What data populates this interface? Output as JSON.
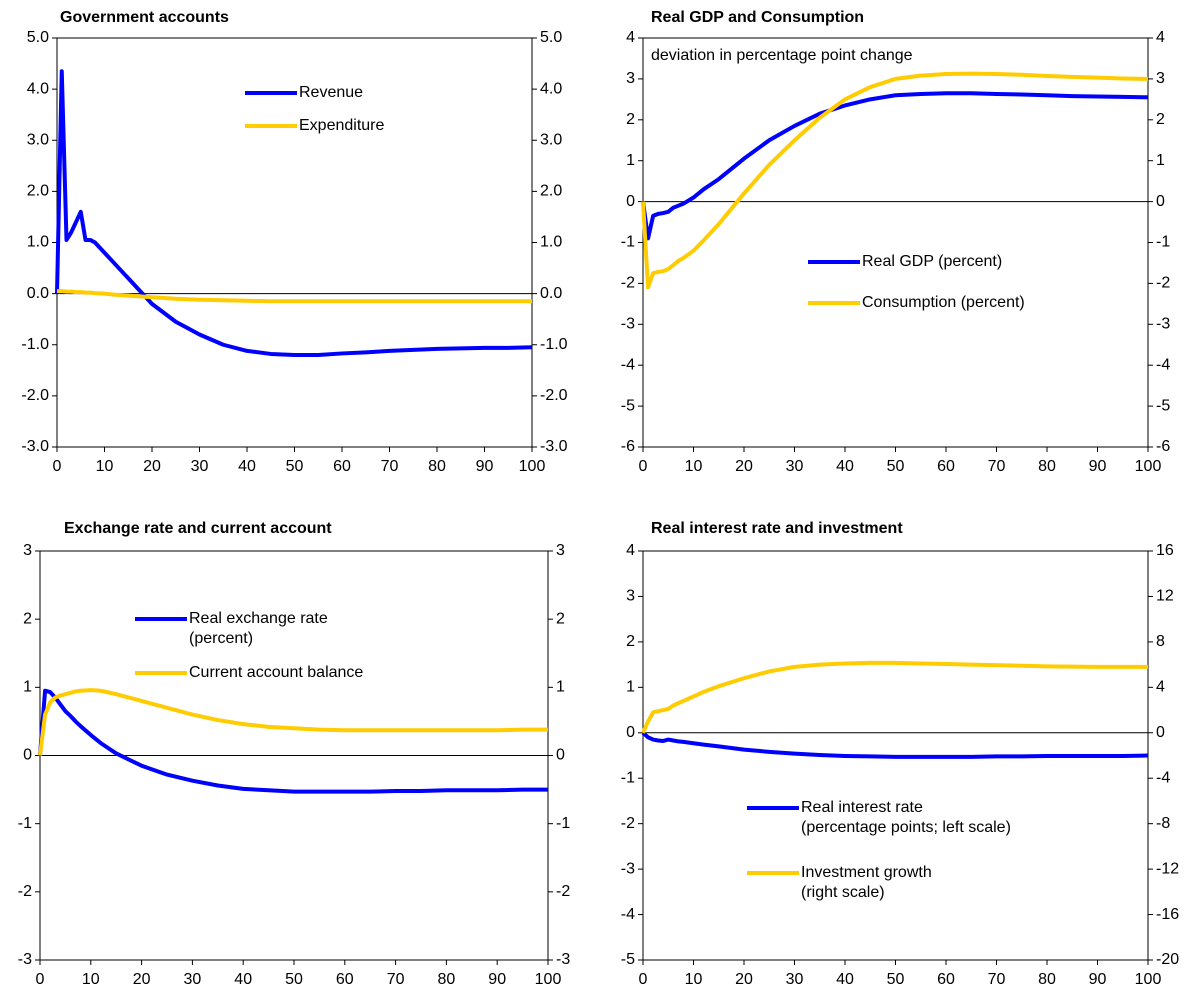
{
  "chart_data": [
    {
      "type": "line",
      "title": "Government accounts",
      "x": [
        0,
        1,
        2,
        3,
        4,
        5,
        6,
        7,
        8,
        10,
        12,
        15,
        20,
        25,
        30,
        35,
        40,
        45,
        50,
        55,
        60,
        65,
        70,
        75,
        80,
        85,
        90,
        95,
        100
      ],
      "series": [
        {
          "name": "Revenue",
          "color": "#0000ff",
          "values": [
            0,
            4.35,
            1.05,
            1.2,
            1.4,
            1.6,
            1.05,
            1.05,
            1.0,
            0.8,
            0.6,
            0.3,
            -0.2,
            -0.55,
            -0.8,
            -1.0,
            -1.12,
            -1.18,
            -1.2,
            -1.2,
            -1.17,
            -1.15,
            -1.12,
            -1.1,
            -1.08,
            -1.07,
            -1.06,
            -1.06,
            -1.05
          ]
        },
        {
          "name": "Expenditure",
          "color": "#ffcc00",
          "values": [
            0.05,
            0.05,
            0.04,
            0.04,
            0.03,
            0.03,
            0.02,
            0.02,
            0.01,
            0,
            -0.02,
            -0.04,
            -0.07,
            -0.1,
            -0.12,
            -0.13,
            -0.14,
            -0.15,
            -0.15,
            -0.15,
            -0.15,
            -0.15,
            -0.15,
            -0.15,
            -0.15,
            -0.15,
            -0.15,
            -0.15,
            -0.15
          ]
        }
      ],
      "xlim": [
        0,
        100
      ],
      "xticks": [
        0,
        10,
        20,
        30,
        40,
        50,
        60,
        70,
        80,
        90,
        100
      ],
      "ylim": [
        -3,
        5
      ],
      "yticks": [
        {
          "value": -3,
          "label": "-3.0"
        },
        {
          "value": -2,
          "label": "-2.0"
        },
        {
          "value": -1,
          "label": "-1.0"
        },
        {
          "value": 0,
          "label": "0.0"
        },
        {
          "value": 1,
          "label": "1.0"
        },
        {
          "value": 2,
          "label": "2.0"
        },
        {
          "value": 3,
          "label": "3.0"
        },
        {
          "value": 4,
          "label": "4.0"
        },
        {
          "value": 5,
          "label": "5.0"
        }
      ],
      "y2lim": [
        -3,
        5
      ],
      "y2ticks": [
        {
          "value": -3,
          "label": "-3.0"
        },
        {
          "value": -2,
          "label": "-2.0"
        },
        {
          "value": -1,
          "label": "-1.0"
        },
        {
          "value": 0,
          "label": "0.0"
        },
        {
          "value": 1,
          "label": "1.0"
        },
        {
          "value": 2,
          "label": "2.0"
        },
        {
          "value": 3,
          "label": "3.0"
        },
        {
          "value": 4,
          "label": "4.0"
        },
        {
          "value": 5,
          "label": "5.0"
        }
      ]
    },
    {
      "type": "line",
      "title": "Real GDP and Consumption",
      "annotation": "deviation in percentage point change",
      "x": [
        0,
        1,
        2,
        3,
        4,
        5,
        6,
        7,
        8,
        10,
        12,
        15,
        20,
        25,
        30,
        35,
        40,
        45,
        50,
        55,
        60,
        65,
        70,
        75,
        80,
        85,
        90,
        95,
        100
      ],
      "series": [
        {
          "name": "Real GDP (percent)",
          "color": "#0000ff",
          "values": [
            0,
            -0.9,
            -0.35,
            -0.3,
            -0.28,
            -0.25,
            -0.15,
            -0.1,
            -0.05,
            0.1,
            0.3,
            0.55,
            1.05,
            1.5,
            1.85,
            2.15,
            2.35,
            2.5,
            2.6,
            2.63,
            2.65,
            2.65,
            2.63,
            2.62,
            2.6,
            2.58,
            2.57,
            2.56,
            2.55
          ]
        },
        {
          "name": "Consumption (percent)",
          "color": "#ffcc00",
          "values": [
            0,
            -2.1,
            -1.75,
            -1.72,
            -1.7,
            -1.65,
            -1.55,
            -1.45,
            -1.38,
            -1.2,
            -0.95,
            -0.55,
            0.2,
            0.9,
            1.5,
            2.05,
            2.5,
            2.8,
            3.0,
            3.08,
            3.12,
            3.13,
            3.12,
            3.1,
            3.07,
            3.05,
            3.03,
            3.01,
            3.0
          ]
        }
      ],
      "xlim": [
        0,
        100
      ],
      "xticks": [
        0,
        10,
        20,
        30,
        40,
        50,
        60,
        70,
        80,
        90,
        100
      ],
      "ylim": [
        -6,
        4
      ],
      "yticks": [
        -6,
        -5,
        -4,
        -3,
        -2,
        -1,
        0,
        1,
        2,
        3,
        4
      ],
      "y2lim": [
        -6,
        4
      ],
      "y2ticks": [
        -6,
        -5,
        -4,
        -3,
        -2,
        -1,
        0,
        1,
        2,
        3,
        4
      ]
    },
    {
      "type": "line",
      "title": "Exchange rate and current account",
      "x": [
        0,
        1,
        2,
        3,
        4,
        5,
        6,
        7,
        8,
        10,
        12,
        15,
        20,
        25,
        30,
        35,
        40,
        45,
        50,
        55,
        60,
        65,
        70,
        75,
        80,
        85,
        90,
        95,
        100
      ],
      "series": [
        {
          "name": "Real exchange rate\n(percent)",
          "color": "#0000ff",
          "values": [
            0,
            0.95,
            0.93,
            0.85,
            0.75,
            0.65,
            0.58,
            0.5,
            0.43,
            0.3,
            0.18,
            0.03,
            -0.15,
            -0.28,
            -0.37,
            -0.44,
            -0.49,
            -0.51,
            -0.53,
            -0.53,
            -0.53,
            -0.53,
            -0.52,
            -0.52,
            -0.51,
            -0.51,
            -0.51,
            -0.5,
            -0.5
          ]
        },
        {
          "name": "Current account balance",
          "color": "#ffcc00",
          "values": [
            0,
            0.6,
            0.78,
            0.85,
            0.88,
            0.9,
            0.92,
            0.94,
            0.95,
            0.96,
            0.95,
            0.9,
            0.8,
            0.7,
            0.6,
            0.52,
            0.46,
            0.42,
            0.4,
            0.38,
            0.37,
            0.37,
            0.37,
            0.37,
            0.37,
            0.37,
            0.37,
            0.38,
            0.38
          ]
        }
      ],
      "xlim": [
        0,
        100
      ],
      "xticks": [
        0,
        10,
        20,
        30,
        40,
        50,
        60,
        70,
        80,
        90,
        100
      ],
      "ylim": [
        -3,
        3
      ],
      "yticks": [
        -3,
        -2,
        -1,
        0,
        1,
        2,
        3
      ],
      "y2lim": [
        -3,
        3
      ],
      "y2ticks": [
        -3,
        -2,
        -1,
        0,
        1,
        2,
        3
      ]
    },
    {
      "type": "line",
      "title": "Real interest rate and investment",
      "x": [
        0,
        1,
        2,
        3,
        4,
        5,
        6,
        7,
        8,
        10,
        12,
        15,
        20,
        25,
        30,
        35,
        40,
        45,
        50,
        55,
        60,
        65,
        70,
        75,
        80,
        85,
        90,
        95,
        100
      ],
      "series": [
        {
          "name": "Real interest rate\n(percentage points; left scale)",
          "color": "#0000ff",
          "values": [
            0,
            -0.1,
            -0.15,
            -0.17,
            -0.18,
            -0.15,
            -0.17,
            -0.19,
            -0.2,
            -0.23,
            -0.26,
            -0.3,
            -0.37,
            -0.42,
            -0.46,
            -0.49,
            -0.51,
            -0.52,
            -0.53,
            -0.53,
            -0.53,
            -0.53,
            -0.52,
            -0.52,
            -0.51,
            -0.51,
            -0.51,
            -0.51,
            -0.5
          ]
        },
        {
          "name": "Investment growth\n(right scale)",
          "color": "#ffcc00",
          "axis": "y2",
          "values": [
            0,
            1,
            1.8,
            1.9,
            2.0,
            2.1,
            2.4,
            2.6,
            2.8,
            3.2,
            3.6,
            4.1,
            4.8,
            5.4,
            5.8,
            6.0,
            6.1,
            6.15,
            6.15,
            6.1,
            6.05,
            6.0,
            5.95,
            5.9,
            5.85,
            5.82,
            5.8,
            5.8,
            5.8
          ]
        }
      ],
      "xlim": [
        0,
        100
      ],
      "xticks": [
        0,
        10,
        20,
        30,
        40,
        50,
        60,
        70,
        80,
        90,
        100
      ],
      "ylim": [
        -5,
        4
      ],
      "yticks": [
        -5,
        -4,
        -3,
        -2,
        -1,
        0,
        1,
        2,
        3,
        4
      ],
      "y2lim": [
        -20,
        16
      ],
      "y2ticks": [
        -20,
        -16,
        -12,
        -8,
        -4,
        0,
        4,
        8,
        12,
        16
      ]
    }
  ]
}
